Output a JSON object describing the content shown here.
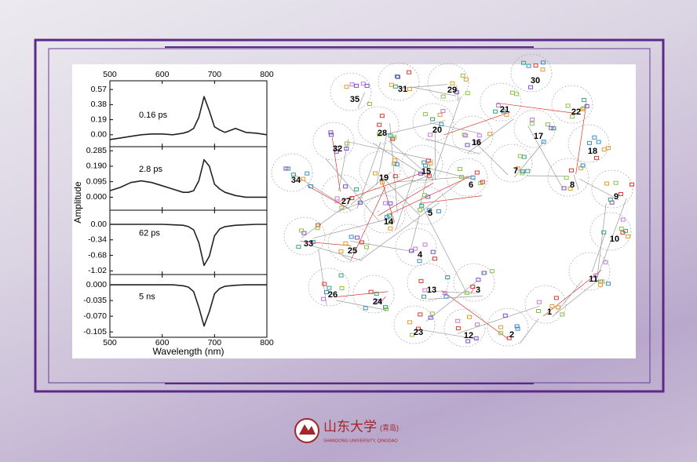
{
  "chart_data": [
    {
      "type": "line",
      "annotation": "0.16 ps",
      "color": "#222222",
      "xlim": [
        500,
        800
      ],
      "xticks": [
        500,
        600,
        700,
        800
      ],
      "x": [
        500,
        520,
        540,
        560,
        580,
        600,
        620,
        640,
        650,
        660,
        670,
        680,
        690,
        700,
        710,
        720,
        740,
        760,
        780,
        800
      ],
      "values": [
        -0.06,
        -0.04,
        -0.02,
        0.0,
        0.01,
        0.01,
        0.0,
        0.02,
        0.04,
        0.08,
        0.22,
        0.48,
        0.3,
        0.1,
        0.06,
        0.03,
        0.08,
        0.03,
        0.02,
        0.0
      ],
      "ylim": [
        -0.15,
        0.68
      ],
      "yticks": [
        {
          "value": 0,
          "label": "0.00"
        },
        0.19,
        0.38,
        0.57
      ]
    },
    {
      "type": "line",
      "annotation": "2.8 ps",
      "color": "#222222",
      "xlim": [
        500,
        800
      ],
      "xticks": [
        500,
        600,
        700,
        800
      ],
      "x": [
        500,
        520,
        540,
        560,
        580,
        600,
        620,
        640,
        650,
        660,
        670,
        680,
        690,
        700,
        710,
        720,
        740,
        760,
        780,
        800
      ],
      "values": [
        0.04,
        0.06,
        0.09,
        0.1,
        0.09,
        0.07,
        0.05,
        0.03,
        0.03,
        0.04,
        0.1,
        0.23,
        0.19,
        0.08,
        0.05,
        0.03,
        0.01,
        0.0,
        0.0,
        0.0
      ],
      "ylim": [
        -0.08,
        0.31
      ],
      "yticks": [
        {
          "value": 0,
          "label": "0.000"
        },
        0.095,
        {
          "value": 0.19,
          "label": "0.190"
        },
        0.285
      ]
    },
    {
      "type": "line",
      "annotation": "62 ps",
      "color": "#222222",
      "xlim": [
        500,
        800
      ],
      "xticks": [
        500,
        600,
        700,
        800
      ],
      "x": [
        500,
        520,
        540,
        560,
        580,
        600,
        620,
        640,
        650,
        660,
        670,
        680,
        690,
        700,
        710,
        720,
        740,
        760,
        780,
        800
      ],
      "values": [
        0.0,
        0.0,
        0.0,
        0.0,
        0.0,
        0.0,
        -0.01,
        -0.02,
        -0.05,
        -0.12,
        -0.4,
        -0.9,
        -0.7,
        -0.25,
        -0.1,
        -0.05,
        -0.02,
        -0.01,
        0.0,
        0.0
      ],
      "ylim": [
        -1.1,
        0.31
      ],
      "yticks": [
        -1.02,
        -0.68,
        -0.34,
        {
          "value": 0,
          "label": "0.00"
        }
      ]
    },
    {
      "type": "line",
      "annotation": "5 ns",
      "color": "#222222",
      "xlim": [
        500,
        800
      ],
      "xticks": [
        500,
        600,
        700,
        800
      ],
      "x": [
        500,
        520,
        540,
        560,
        580,
        600,
        620,
        640,
        650,
        660,
        670,
        680,
        690,
        700,
        710,
        720,
        740,
        760,
        780,
        800
      ],
      "values": [
        0.0,
        0.0,
        0.0,
        0.0,
        0.0,
        0.0,
        0.0,
        -0.002,
        -0.005,
        -0.015,
        -0.05,
        -0.092,
        -0.06,
        -0.02,
        -0.008,
        -0.003,
        -0.001,
        0.0,
        0.0,
        0.0
      ],
      "ylim": [
        -0.117,
        0.023
      ],
      "yticks": [
        -0.105,
        {
          "value": -0.07,
          "label": "-0.070"
        },
        {
          "value": -0.035,
          "label": "-0.035"
        },
        {
          "value": 0,
          "label": "0.000"
        }
      ]
    }
  ],
  "axis_labels": {
    "y": "Amplitude",
    "x": "Wavelength (nm)"
  },
  "network": {
    "labels": [
      "1",
      "2",
      "3",
      "4",
      "5",
      "6",
      "7",
      "8",
      "9",
      "10",
      "11",
      "12",
      "13",
      "14",
      "15",
      "16",
      "17",
      "18",
      "19",
      "20",
      "21",
      "22",
      "23",
      "24",
      "25",
      "26",
      "27",
      "28",
      "29",
      "30",
      "31",
      "32",
      "33",
      "34",
      "35"
    ]
  },
  "footer": {
    "name": "山东大学",
    "campus": "(青岛)",
    "english": "SHANDONG UNIVERSITY, QINGDAO"
  }
}
